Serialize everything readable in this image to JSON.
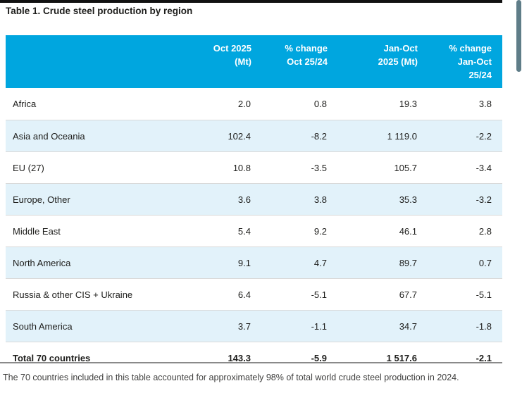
{
  "page": {
    "title": "Table 1. Crude steel production by region",
    "footnote": "The 70 countries included in this table accounted for approximately 98% of total world crude steel production in 2024."
  },
  "colors": {
    "header_bg": "#00A6DF",
    "stripe_bg": "#E2F2FA",
    "text": "#1d1d1b",
    "scrollbar_thumb": "#5f7d88"
  },
  "table": {
    "header": {
      "region_label": "",
      "columns": [
        {
          "id": "oct-2025-mt",
          "lines": [
            "Oct 2025",
            "(Mt)"
          ]
        },
        {
          "id": "pct-change-oct-25-24",
          "lines": [
            "% change",
            "Oct 25/24"
          ]
        },
        {
          "id": "jan-oct-2025-mt",
          "lines": [
            "Jan-Oct",
            "2025 (Mt)"
          ]
        },
        {
          "id": "pct-change-jan-oct-25-24",
          "lines": [
            "% change",
            "Jan-Oct",
            "25/24"
          ]
        }
      ]
    },
    "rows": [
      {
        "region": "Africa",
        "values": [
          "2.0",
          "0.8",
          "19.3",
          "3.8"
        ]
      },
      {
        "region": "Asia and Oceania",
        "values": [
          "102.4",
          "-8.2",
          "1 119.0",
          "-2.2"
        ]
      },
      {
        "region": "EU (27)",
        "values": [
          "10.8",
          "-3.5",
          "105.7",
          "-3.4"
        ]
      },
      {
        "region": "Europe, Other",
        "values": [
          "3.6",
          "3.8",
          "35.3",
          "-3.2"
        ]
      },
      {
        "region": "Middle East",
        "values": [
          "5.4",
          "9.2",
          "46.1",
          "2.8"
        ]
      },
      {
        "region": "North America",
        "values": [
          "9.1",
          "4.7",
          "89.7",
          "0.7"
        ]
      },
      {
        "region": "Russia & other CIS + Ukraine",
        "values": [
          "6.4",
          "-5.1",
          "67.7",
          "-5.1"
        ]
      },
      {
        "region": "South America",
        "values": [
          "3.7",
          "-1.1",
          "34.7",
          "-1.8"
        ]
      }
    ],
    "total": {
      "region": "Total 70 countries",
      "values": [
        "143.3",
        "-5.9",
        "1 517.6",
        "-2.1"
      ]
    }
  },
  "scrollbar": {
    "present": true
  }
}
